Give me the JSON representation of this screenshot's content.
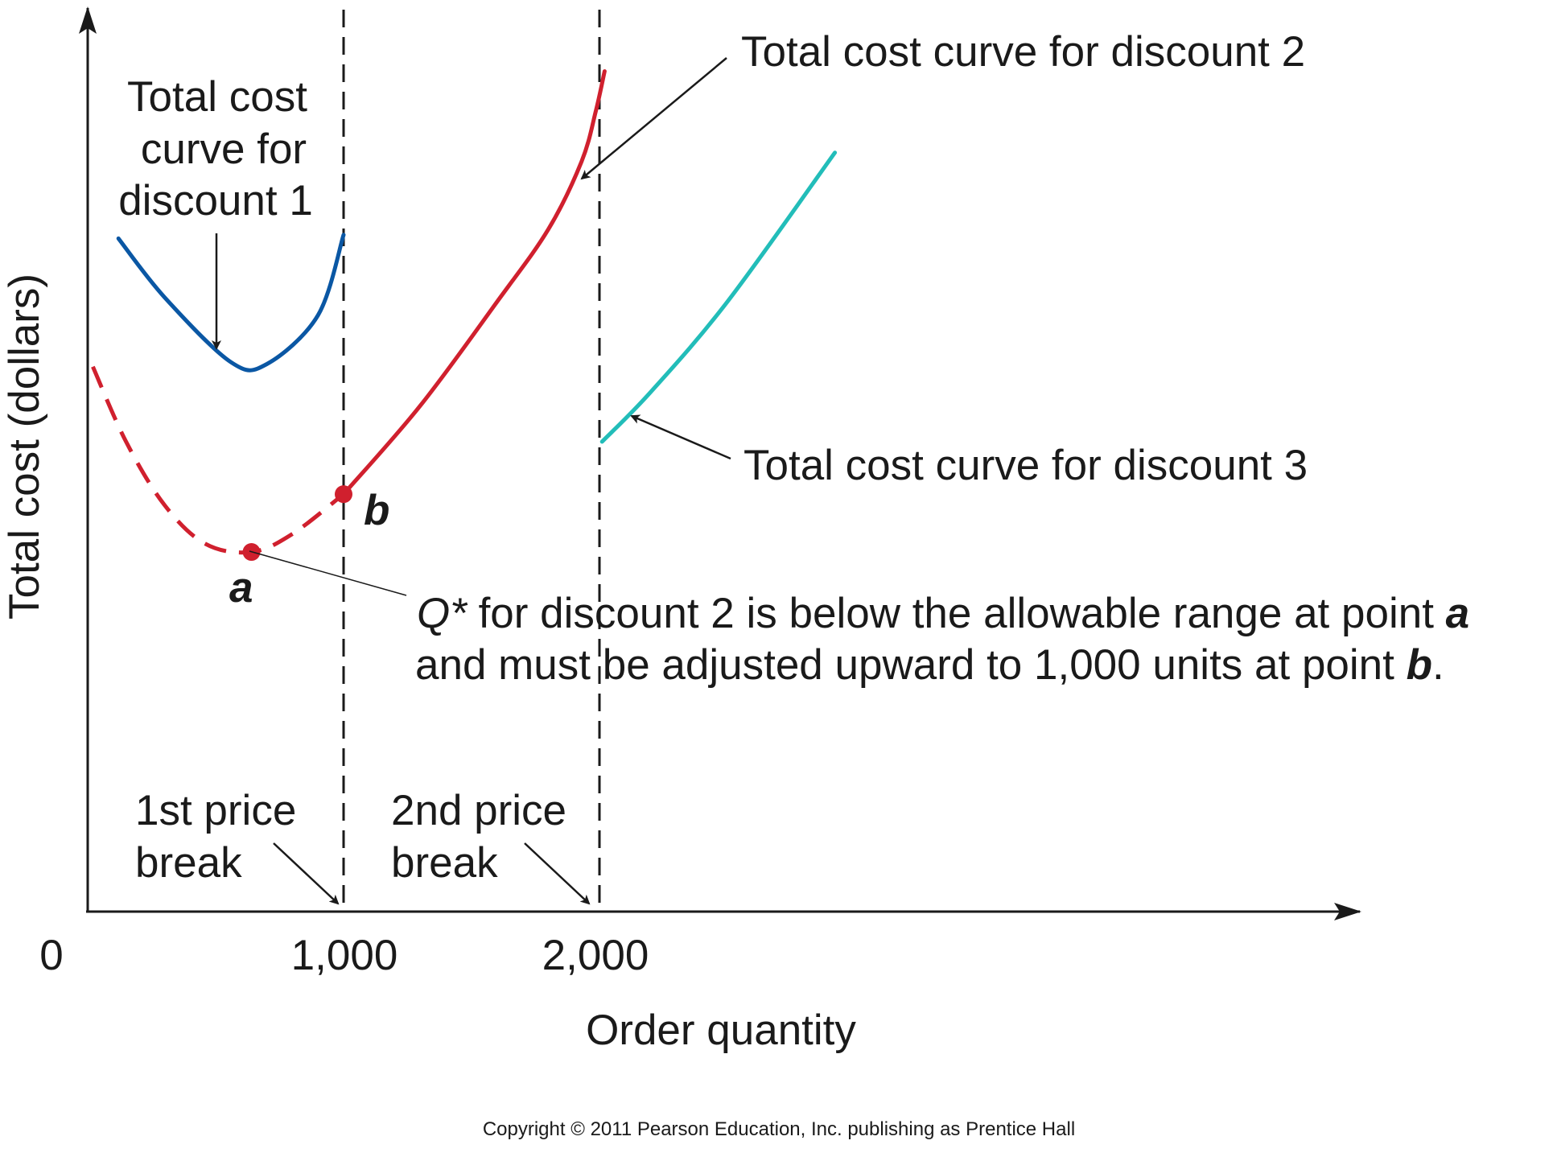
{
  "chart_data": {
    "type": "line",
    "xlabel": "Order quantity",
    "ylabel": "Total cost (dollars)",
    "xlim": [
      0,
      5000
    ],
    "ylim": [
      0,
      100
    ],
    "x_ticks": [
      {
        "value": 0,
        "label": "0"
      },
      {
        "value": 1000,
        "label": "1,000"
      },
      {
        "value": 2000,
        "label": "2,000"
      }
    ],
    "price_breaks": [
      {
        "x": 1000,
        "label_line1": "1st price",
        "label_line2": "break"
      },
      {
        "x": 2000,
        "label_line1": "2nd price",
        "label_line2": "break"
      }
    ],
    "series": [
      {
        "name": "Total cost curve for discount 1",
        "color": "#0a57a4",
        "style": "solid",
        "points": [
          [
            120,
            74.5
          ],
          [
            300,
            68
          ],
          [
            560,
            60.8
          ],
          [
            700,
            60.6
          ],
          [
            900,
            66
          ],
          [
            1000,
            74.9
          ]
        ]
      },
      {
        "name": "Total cost curve for discount 2",
        "color": "#d0202e",
        "style": "dashed",
        "range": [
          0,
          1000
        ],
        "points": [
          [
            20,
            60.3
          ],
          [
            150,
            52
          ],
          [
            300,
            45
          ],
          [
            460,
            40.7
          ],
          [
            640,
            39.8
          ],
          [
            800,
            41.8
          ],
          [
            1000,
            46.2
          ]
        ]
      },
      {
        "name": "Total cost curve for discount 2",
        "color": "#d0202e",
        "style": "solid",
        "range": [
          1000,
          2000
        ],
        "points": [
          [
            1000,
            46.2
          ],
          [
            1300,
            56
          ],
          [
            1600,
            67.5
          ],
          [
            1800,
            75.5
          ],
          [
            1930,
            83
          ],
          [
            1985,
            88.5
          ],
          [
            2020,
            93
          ]
        ]
      },
      {
        "name": "Total cost curve for discount 3",
        "color": "#22bdb9",
        "style": "solid",
        "points": [
          [
            2010,
            52
          ],
          [
            2200,
            57.5
          ],
          [
            2500,
            67.5
          ],
          [
            2920,
            84
          ]
        ]
      }
    ],
    "points": [
      {
        "label": "a",
        "x": 640,
        "y": 39.8,
        "color": "#d0202e"
      },
      {
        "label": "b",
        "x": 1000,
        "y": 46.2,
        "color": "#d0202e"
      }
    ],
    "annotations": {
      "discount1_line1": "Total cost",
      "discount1_line2": "curve for",
      "discount1_line3": "discount 1",
      "discount2": "Total cost curve for discount 2",
      "discount3": "Total cost curve for discount 3",
      "qstar_symbol": "Q*",
      "qstar_line1_rest": " for discount 2 is below the allowable range at point ",
      "qstar_line1_pt": "a",
      "qstar_line2_rest": "and must be adjusted upward to 1,000 units at point ",
      "qstar_line2_pt": "b",
      "qstar_line2_end": "."
    }
  },
  "footer": {
    "copyright": "Copyright © 2011 Pearson Education, Inc. publishing as Prentice Hall"
  }
}
